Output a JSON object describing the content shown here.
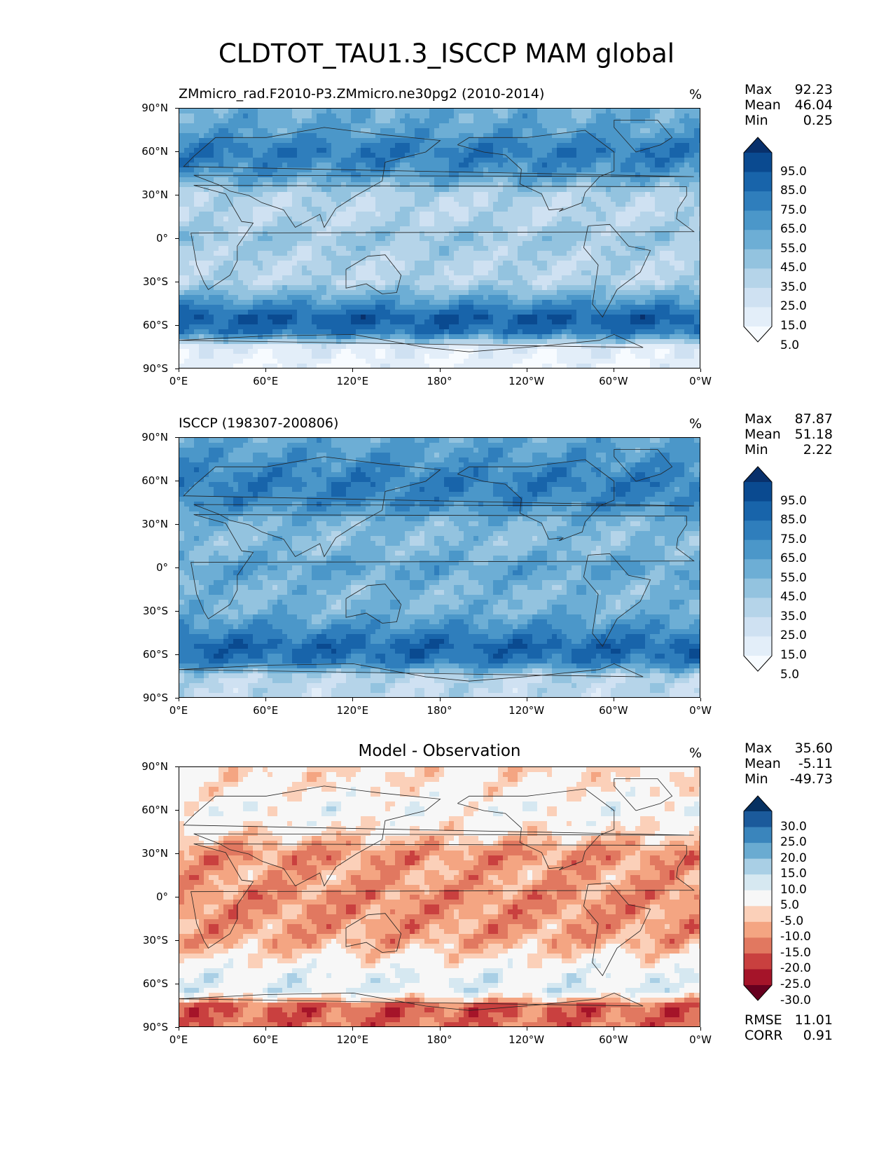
{
  "figure": {
    "title": "CLDTOT_TAU1.3_ISCCP MAM global"
  },
  "axes": {
    "lat_ticks": [
      "90°N",
      "60°N",
      "30°N",
      "0°",
      "30°S",
      "60°S",
      "90°S"
    ],
    "lon_ticks": [
      "0°E",
      "60°E",
      "120°E",
      "180°",
      "120°W",
      "60°W",
      "0°W"
    ]
  },
  "panels": {
    "test": {
      "title": "ZMmicro_rad.F2010-P3.ZMmicro.ne30pg2 (2010-2014)",
      "units": "%",
      "stats": [
        {
          "label": "Max",
          "value": "92.23"
        },
        {
          "label": "Mean",
          "value": "46.04"
        },
        {
          "label": "Min",
          "value": "0.25"
        }
      ],
      "colorbar_ticks": [
        "95.0",
        "85.0",
        "75.0",
        "65.0",
        "55.0",
        "45.0",
        "35.0",
        "25.0",
        "15.0",
        "5.0"
      ]
    },
    "reference": {
      "title": "ISCCP (198307-200806)",
      "units": "%",
      "stats": [
        {
          "label": "Max",
          "value": "87.87"
        },
        {
          "label": "Mean",
          "value": "51.18"
        },
        {
          "label": "Min",
          "value": "2.22"
        }
      ],
      "colorbar_ticks": [
        "95.0",
        "85.0",
        "75.0",
        "65.0",
        "55.0",
        "45.0",
        "35.0",
        "25.0",
        "15.0",
        "5.0"
      ]
    },
    "diff": {
      "title": "Model - Observation",
      "units": "%",
      "stats": [
        {
          "label": "Max",
          "value": "35.60"
        },
        {
          "label": "Mean",
          "value": "-5.11"
        },
        {
          "label": "Min",
          "value": "-49.73"
        }
      ],
      "colorbar_ticks": [
        "30.0",
        "25.0",
        "20.0",
        "15.0",
        "10.0",
        "5.0",
        "-5.0",
        "-10.0",
        "-15.0",
        "-20.0",
        "-25.0",
        "-30.0"
      ],
      "extra_stats": [
        {
          "label": "RMSE",
          "value": "11.01"
        },
        {
          "label": "CORR",
          "value": "0.91"
        }
      ]
    }
  },
  "colors": {
    "blues": [
      "#f7fbff",
      "#e3eef9",
      "#cfe1f2",
      "#b5d4e9",
      "#93c3df",
      "#6daed5",
      "#4b97c9",
      "#2f7ebc",
      "#1864aa",
      "#0a4a90",
      "#08306b"
    ],
    "diverging": [
      "#67001f",
      "#a51429",
      "#c9403f",
      "#e17860",
      "#f4a582",
      "#fbd0b9",
      "#f7f7f7",
      "#d6e8f1",
      "#a9cfe5",
      "#6aabd1",
      "#3a85bc",
      "#1b5a9b",
      "#053061"
    ]
  },
  "chart_data": [
    {
      "type": "heatmap",
      "title": "ZMmicro_rad.F2010-P3.ZMmicro.ne30pg2 (2010-2014)",
      "units": "%",
      "lat_range": [
        -90,
        90
      ],
      "lon_range": [
        0,
        360
      ],
      "zonal_profile": {
        "lat": [
          90,
          75,
          60,
          45,
          30,
          15,
          0,
          -15,
          -30,
          -45,
          -55,
          -65,
          -75,
          -90
        ],
        "value": [
          50,
          55,
          72,
          60,
          30,
          28,
          38,
          30,
          30,
          62,
          85,
          72,
          12,
          5
        ]
      },
      "colorbar_levels": [
        5,
        15,
        25,
        35,
        45,
        55,
        65,
        75,
        85,
        95
      ],
      "max": 92.23,
      "mean": 46.04,
      "min": 0.25
    },
    {
      "type": "heatmap",
      "title": "ISCCP (198307-200806)",
      "units": "%",
      "lat_range": [
        -90,
        90
      ],
      "lon_range": [
        0,
        360
      ],
      "zonal_profile": {
        "lat": [
          90,
          75,
          60,
          45,
          30,
          15,
          0,
          -15,
          -30,
          -45,
          -55,
          -65,
          -75,
          -90
        ],
        "value": [
          52,
          60,
          70,
          65,
          45,
          42,
          55,
          45,
          48,
          68,
          80,
          70,
          30,
          25
        ]
      },
      "colorbar_levels": [
        5,
        15,
        25,
        35,
        45,
        55,
        65,
        75,
        85,
        95
      ],
      "max": 87.87,
      "mean": 51.18,
      "min": 2.22
    },
    {
      "type": "heatmap",
      "title": "Model - Observation",
      "units": "%",
      "lat_range": [
        -90,
        90
      ],
      "lon_range": [
        0,
        360
      ],
      "zonal_profile": {
        "lat": [
          90,
          75,
          60,
          45,
          30,
          15,
          0,
          -15,
          -30,
          -45,
          -55,
          -65,
          -75,
          -90
        ],
        "value": [
          -5,
          -3,
          2,
          -5,
          -15,
          -12,
          -15,
          -14,
          -12,
          -2,
          4,
          5,
          -20,
          -18
        ]
      },
      "colorbar_levels": [
        -30,
        -25,
        -20,
        -15,
        -10,
        -5,
        5,
        10,
        15,
        20,
        25,
        30
      ],
      "max": 35.6,
      "mean": -5.11,
      "min": -49.73,
      "rmse": 11.01,
      "corr": 0.91
    }
  ]
}
